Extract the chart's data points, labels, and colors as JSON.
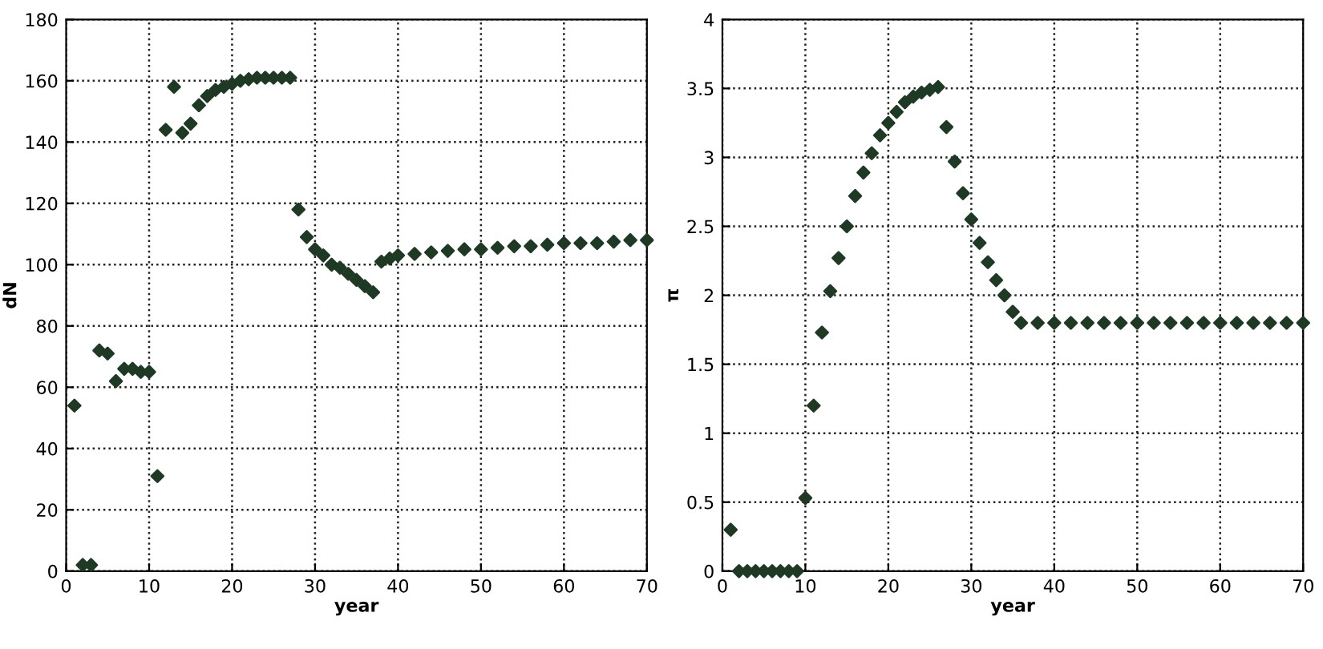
{
  "chart_data": [
    {
      "type": "scatter",
      "xlabel": "year",
      "ylabel": "dN",
      "xlim": [
        0,
        70
      ],
      "ylim": [
        0,
        180
      ],
      "xticks": [
        0,
        10,
        20,
        30,
        40,
        50,
        60,
        70
      ],
      "yticks": [
        0,
        20,
        40,
        60,
        80,
        100,
        120,
        140,
        160,
        180
      ],
      "grid": true,
      "marker": "diamond",
      "series": [
        {
          "color": "#1e3a24",
          "x": [
            1,
            2,
            3,
            4,
            5,
            6,
            7,
            8,
            9,
            10,
            11,
            12,
            13,
            14,
            15,
            16,
            17,
            18,
            19,
            20,
            21,
            22,
            23,
            24,
            25,
            26,
            27,
            28,
            29,
            30,
            31,
            32,
            33,
            34,
            35,
            36,
            37,
            38,
            39,
            40,
            42,
            44,
            46,
            48,
            50,
            52,
            54,
            56,
            58,
            60,
            62,
            64,
            66,
            68,
            70
          ],
          "values": [
            54,
            2,
            2,
            72,
            71,
            62,
            66,
            66,
            65,
            65,
            31,
            144,
            158,
            143,
            146,
            152,
            155,
            157,
            158,
            159,
            160,
            160.5,
            161,
            161,
            161,
            161,
            161,
            118,
            109,
            105,
            103,
            100,
            99,
            97,
            95,
            93,
            91,
            101,
            102,
            103,
            103.5,
            104,
            104.5,
            105,
            105,
            105.5,
            106,
            106,
            106.5,
            107,
            107,
            107,
            107.5,
            108,
            108
          ]
        }
      ]
    },
    {
      "type": "scatter",
      "xlabel": "year",
      "ylabel": "π",
      "xlim": [
        0,
        70
      ],
      "ylim": [
        0,
        4
      ],
      "xticks": [
        0,
        10,
        20,
        30,
        40,
        50,
        60,
        70
      ],
      "yticks": [
        0,
        0.5,
        1,
        1.5,
        2,
        2.5,
        3,
        3.5,
        4
      ],
      "grid": true,
      "marker": "diamond",
      "series": [
        {
          "color": "#1e3a24",
          "x": [
            1,
            2,
            3,
            4,
            5,
            6,
            7,
            8,
            9,
            10,
            11,
            12,
            13,
            14,
            15,
            16,
            17,
            18,
            19,
            20,
            21,
            22,
            23,
            24,
            25,
            26,
            27,
            28,
            29,
            30,
            31,
            32,
            33,
            34,
            35,
            36,
            38,
            40,
            42,
            44,
            46,
            48,
            50,
            52,
            54,
            56,
            58,
            60,
            62,
            64,
            66,
            68,
            70
          ],
          "values": [
            0.3,
            0,
            0,
            0,
            0,
            0,
            0,
            0,
            0,
            0.53,
            1.2,
            1.73,
            2.03,
            2.27,
            2.5,
            2.72,
            2.89,
            3.03,
            3.16,
            3.25,
            3.33,
            3.4,
            3.44,
            3.47,
            3.49,
            3.51,
            3.22,
            2.97,
            2.74,
            2.55,
            2.38,
            2.24,
            2.11,
            2.0,
            1.88,
            1.8,
            1.8,
            1.8,
            1.8,
            1.8,
            1.8,
            1.8,
            1.8,
            1.8,
            1.8,
            1.8,
            1.8,
            1.8,
            1.8,
            1.8,
            1.8,
            1.8,
            1.8
          ]
        }
      ]
    }
  ]
}
